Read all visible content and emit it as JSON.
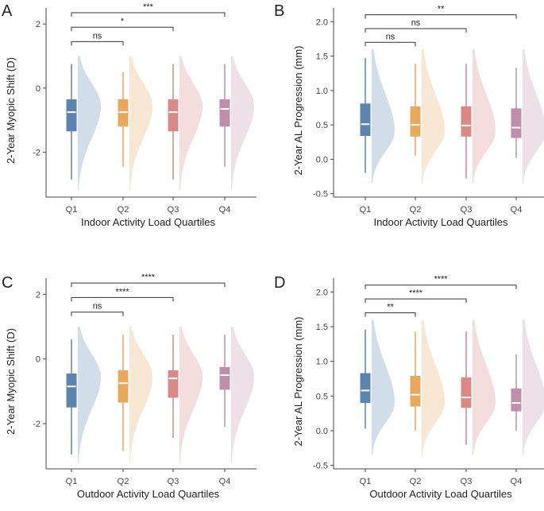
{
  "colors": [
    "#5b84b1",
    "#e6a95e",
    "#d98a86",
    "#bf8fa9"
  ],
  "chart_data": [
    {
      "type": "raincloud-boxplot",
      "panel_label": "A",
      "xlabel": "Indoor Activity Load Quartiles",
      "ylabel": "2-Year Myopic Shift (D)",
      "categories": [
        "Q1",
        "Q2",
        "Q3",
        "Q4"
      ],
      "ylim": [
        -3.4,
        2.5
      ],
      "yticks": [
        -2,
        0,
        2
      ],
      "boxes": [
        {
          "min": -2.85,
          "q1": -1.35,
          "median": -0.75,
          "q3": -0.35,
          "max": 0.75
        },
        {
          "min": -2.45,
          "q1": -1.2,
          "median": -0.75,
          "q3": -0.35,
          "max": 0.5
        },
        {
          "min": -2.85,
          "q1": -1.35,
          "median": -0.75,
          "q3": -0.35,
          "max": 0.75
        },
        {
          "min": -2.45,
          "q1": -1.2,
          "median": -0.65,
          "q3": -0.35,
          "max": 0.75
        }
      ],
      "density_range": [
        -3.2,
        1.0
      ],
      "density_mode": -0.55,
      "significance": [
        {
          "from": "Q1",
          "to": "Q2",
          "label": "ns",
          "y": 1.45
        },
        {
          "from": "Q1",
          "to": "Q3",
          "label": "*",
          "y": 1.9
        },
        {
          "from": "Q1",
          "to": "Q4",
          "label": "***",
          "y": 2.35
        }
      ]
    },
    {
      "type": "raincloud-boxplot",
      "panel_label": "B",
      "xlabel": "Indoor Activity Load Quartiles",
      "ylabel": "2-Year AL Progression (mm)",
      "categories": [
        "Q1",
        "Q2",
        "Q3",
        "Q4"
      ],
      "ylim": [
        -0.55,
        2.2
      ],
      "yticks": [
        -0.5,
        0.0,
        0.5,
        1.0,
        1.5,
        2.0
      ],
      "boxes": [
        {
          "min": -0.2,
          "q1": 0.34,
          "median": 0.51,
          "q3": 0.81,
          "max": 1.47
        },
        {
          "min": 0.05,
          "q1": 0.33,
          "median": 0.5,
          "q3": 0.77,
          "max": 1.39
        },
        {
          "min": -0.28,
          "q1": 0.33,
          "median": 0.49,
          "q3": 0.77,
          "max": 1.39
        },
        {
          "min": 0.02,
          "q1": 0.31,
          "median": 0.46,
          "q3": 0.74,
          "max": 1.33
        }
      ],
      "density_range": [
        -0.35,
        1.6
      ],
      "density_mode": 0.4,
      "significance": [
        {
          "from": "Q1",
          "to": "Q2",
          "label": "ns",
          "y": 1.7
        },
        {
          "from": "Q1",
          "to": "Q3",
          "label": "ns",
          "y": 1.9
        },
        {
          "from": "Q1",
          "to": "Q4",
          "label": "**",
          "y": 2.1
        }
      ]
    },
    {
      "type": "raincloud-boxplot",
      "panel_label": "C",
      "xlabel": "Outdoor Activity Load Quartiles",
      "ylabel": "2-Year Myopic Shift (D)",
      "categories": [
        "Q1",
        "Q2",
        "Q3",
        "Q4"
      ],
      "ylim": [
        -3.4,
        2.5
      ],
      "yticks": [
        -2,
        0,
        2
      ],
      "boxes": [
        {
          "min": -2.95,
          "q1": -1.5,
          "median": -0.85,
          "q3": -0.45,
          "max": 0.6
        },
        {
          "min": -2.85,
          "q1": -1.35,
          "median": -0.75,
          "q3": -0.35,
          "max": 0.75
        },
        {
          "min": -2.45,
          "q1": -1.2,
          "median": -0.6,
          "q3": -0.35,
          "max": 0.75
        },
        {
          "min": -2.1,
          "q1": -0.95,
          "median": -0.5,
          "q3": -0.25,
          "max": 0.75
        }
      ],
      "density_range": [
        -3.2,
        1.0
      ],
      "density_mode": -0.55,
      "significance": [
        {
          "from": "Q1",
          "to": "Q2",
          "label": "ns",
          "y": 1.45
        },
        {
          "from": "Q1",
          "to": "Q3",
          "label": "****",
          "y": 1.9
        },
        {
          "from": "Q1",
          "to": "Q4",
          "label": "****",
          "y": 2.35
        }
      ]
    },
    {
      "type": "raincloud-boxplot",
      "panel_label": "D",
      "xlabel": "Outdoor Activity Load Quartiles",
      "ylabel": "2-Year AL Progression (mm)",
      "categories": [
        "Q1",
        "Q2",
        "Q3",
        "Q4"
      ],
      "ylim": [
        -0.55,
        2.2
      ],
      "yticks": [
        -0.5,
        0.0,
        0.5,
        1.0,
        1.5,
        2.0
      ],
      "boxes": [
        {
          "min": 0.03,
          "q1": 0.4,
          "median": 0.58,
          "q3": 0.83,
          "max": 1.46
        },
        {
          "min": 0.0,
          "q1": 0.35,
          "median": 0.52,
          "q3": 0.79,
          "max": 1.43
        },
        {
          "min": -0.2,
          "q1": 0.33,
          "median": 0.48,
          "q3": 0.77,
          "max": 1.43
        },
        {
          "min": 0.0,
          "q1": 0.28,
          "median": 0.4,
          "q3": 0.61,
          "max": 1.1
        }
      ],
      "density_range": [
        -0.35,
        1.6
      ],
      "density_mode": 0.4,
      "significance": [
        {
          "from": "Q1",
          "to": "Q2",
          "label": "**",
          "y": 1.7
        },
        {
          "from": "Q1",
          "to": "Q3",
          "label": "****",
          "y": 1.9
        },
        {
          "from": "Q1",
          "to": "Q4",
          "label": "****",
          "y": 2.1
        }
      ]
    }
  ]
}
